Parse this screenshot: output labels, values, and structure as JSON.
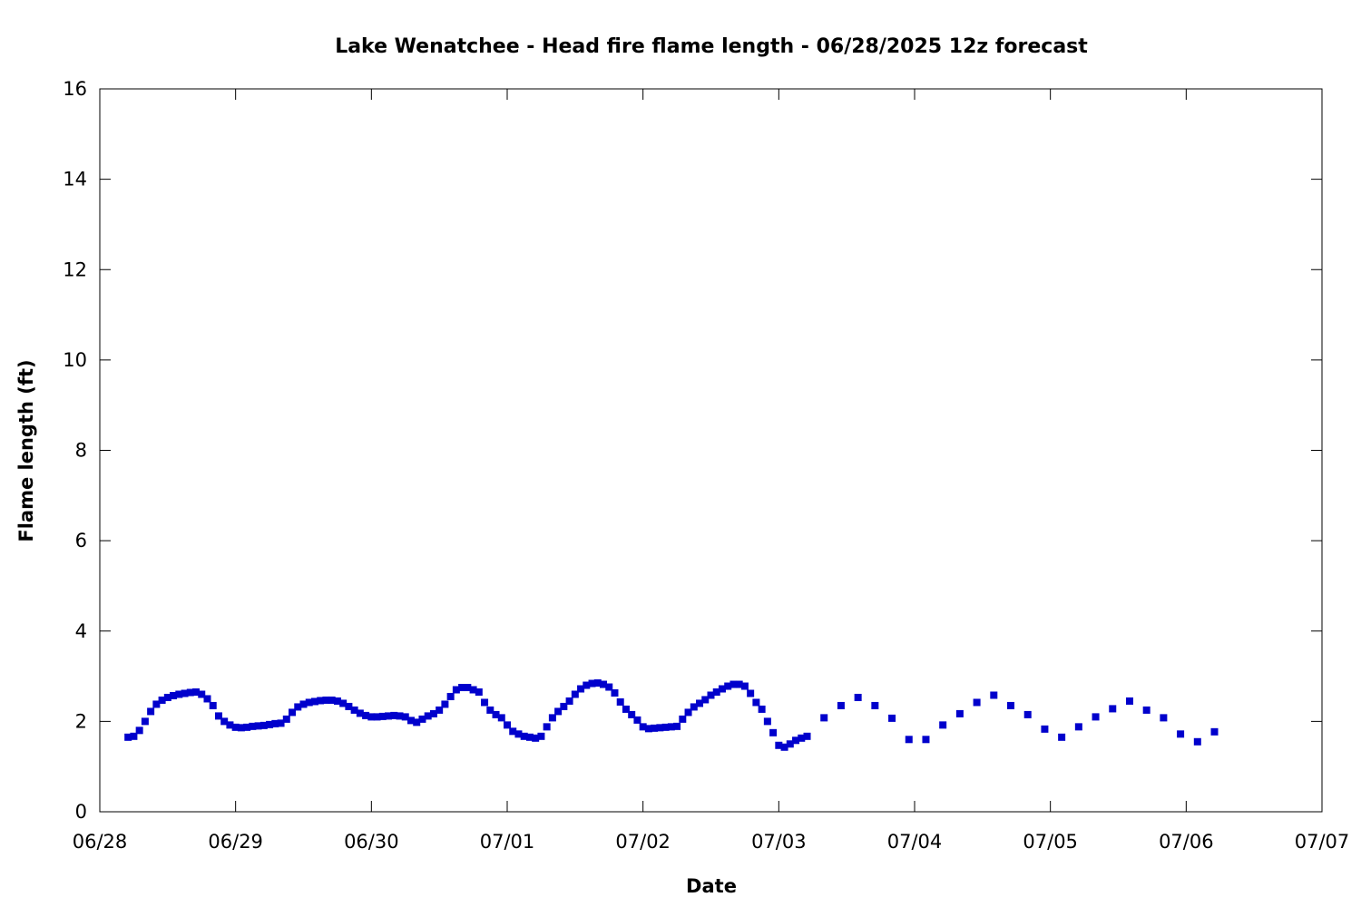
{
  "chart_data": {
    "type": "scatter",
    "title": "Lake Wenatchee - Head fire flame length - 06/28/2025 12z forecast",
    "xlabel": "Date",
    "ylabel": "Flame length (ft)",
    "x_unit": "days",
    "x_ticks": [
      "06/28",
      "06/29",
      "06/30",
      "07/01",
      "07/02",
      "07/03",
      "07/04",
      "07/05",
      "07/06",
      "07/07"
    ],
    "y_ticks": [
      "0",
      "2",
      "4",
      "6",
      "8",
      "10",
      "12",
      "14",
      "16"
    ],
    "ylim": [
      0,
      16
    ],
    "grid": false,
    "legend": "none",
    "marker": "square",
    "color": "#0000cc",
    "series": [
      {
        "x": [
          "06/28 05:00",
          "06/28 06:00",
          "06/28 07:00",
          "06/28 08:00",
          "06/28 09:00",
          "06/28 10:00",
          "06/28 11:00",
          "06/28 12:00",
          "06/28 13:00",
          "06/28 14:00",
          "06/28 15:00",
          "06/28 16:00",
          "06/28 17:00",
          "06/28 18:00",
          "06/28 19:00",
          "06/28 20:00",
          "06/28 21:00",
          "06/28 22:00",
          "06/28 23:00",
          "06/29 00:00",
          "06/29 01:00",
          "06/29 02:00",
          "06/29 03:00",
          "06/29 04:00",
          "06/29 05:00",
          "06/29 06:00",
          "06/29 07:00",
          "06/29 08:00",
          "06/29 09:00",
          "06/29 10:00",
          "06/29 11:00",
          "06/29 12:00",
          "06/29 13:00",
          "06/29 14:00",
          "06/29 15:00",
          "06/29 16:00",
          "06/29 17:00",
          "06/29 18:00",
          "06/29 19:00",
          "06/29 20:00",
          "06/29 21:00",
          "06/29 22:00",
          "06/29 23:00",
          "06/30 00:00",
          "06/30 01:00",
          "06/30 02:00",
          "06/30 03:00",
          "06/30 04:00",
          "06/30 05:00",
          "06/30 06:00",
          "06/30 07:00",
          "06/30 08:00",
          "06/30 09:00",
          "06/30 10:00",
          "06/30 11:00",
          "06/30 12:00",
          "06/30 13:00",
          "06/30 14:00",
          "06/30 15:00",
          "06/30 16:00",
          "06/30 17:00",
          "06/30 18:00",
          "06/30 19:00",
          "06/30 20:00",
          "06/30 21:00",
          "06/30 22:00",
          "06/30 23:00",
          "07/01 00:00",
          "07/01 01:00",
          "07/01 02:00",
          "07/01 03:00",
          "07/01 04:00",
          "07/01 05:00",
          "07/01 06:00",
          "07/01 07:00",
          "07/01 08:00",
          "07/01 09:00",
          "07/01 10:00",
          "07/01 11:00",
          "07/01 12:00",
          "07/01 13:00",
          "07/01 14:00",
          "07/01 15:00",
          "07/01 16:00",
          "07/01 17:00",
          "07/01 18:00",
          "07/01 19:00",
          "07/01 20:00",
          "07/01 21:00",
          "07/01 22:00",
          "07/01 23:00",
          "07/02 00:00",
          "07/02 01:00",
          "07/02 02:00",
          "07/02 03:00",
          "07/02 04:00",
          "07/02 05:00",
          "07/02 06:00",
          "07/02 07:00",
          "07/02 08:00",
          "07/02 09:00",
          "07/02 10:00",
          "07/02 11:00",
          "07/02 12:00",
          "07/02 13:00",
          "07/02 14:00",
          "07/02 15:00",
          "07/02 16:00",
          "07/02 17:00",
          "07/02 18:00",
          "07/02 19:00",
          "07/02 20:00",
          "07/02 21:00",
          "07/02 22:00",
          "07/02 23:00",
          "07/03 00:00",
          "07/03 01:00",
          "07/03 02:00",
          "07/03 03:00",
          "07/03 04:00",
          "07/03 05:00",
          "07/03 08:00",
          "07/03 11:00",
          "07/03 14:00",
          "07/03 17:00",
          "07/03 20:00",
          "07/03 23:00",
          "07/04 02:00",
          "07/04 05:00",
          "07/04 08:00",
          "07/04 11:00",
          "07/04 14:00",
          "07/04 17:00",
          "07/04 20:00",
          "07/04 23:00",
          "07/05 02:00",
          "07/05 05:00",
          "07/05 08:00",
          "07/05 11:00",
          "07/05 14:00",
          "07/05 17:00",
          "07/05 20:00",
          "07/05 23:00",
          "07/06 02:00",
          "07/06 05:00"
        ],
        "y": [
          1.65,
          1.67,
          1.8,
          2.0,
          2.22,
          2.38,
          2.47,
          2.53,
          2.57,
          2.6,
          2.62,
          2.64,
          2.65,
          2.6,
          2.5,
          2.35,
          2.12,
          2.0,
          1.92,
          1.87,
          1.86,
          1.87,
          1.89,
          1.9,
          1.91,
          1.93,
          1.95,
          1.96,
          2.05,
          2.2,
          2.32,
          2.38,
          2.42,
          2.44,
          2.46,
          2.47,
          2.47,
          2.45,
          2.4,
          2.33,
          2.25,
          2.18,
          2.13,
          2.1,
          2.1,
          2.11,
          2.12,
          2.13,
          2.12,
          2.1,
          2.02,
          1.98,
          2.05,
          2.12,
          2.17,
          2.25,
          2.38,
          2.55,
          2.7,
          2.75,
          2.75,
          2.7,
          2.65,
          2.42,
          2.25,
          2.15,
          2.08,
          1.92,
          1.78,
          1.72,
          1.67,
          1.65,
          1.63,
          1.67,
          1.88,
          2.08,
          2.22,
          2.33,
          2.45,
          2.6,
          2.72,
          2.8,
          2.84,
          2.85,
          2.82,
          2.76,
          2.63,
          2.43,
          2.27,
          2.15,
          2.03,
          1.88,
          1.84,
          1.85,
          1.86,
          1.87,
          1.88,
          1.89,
          2.05,
          2.2,
          2.32,
          2.4,
          2.48,
          2.58,
          2.65,
          2.72,
          2.78,
          2.82,
          2.82,
          2.78,
          2.62,
          2.42,
          2.27,
          2.0,
          1.75,
          1.47,
          1.43,
          1.5,
          1.58,
          1.63,
          1.67,
          2.08,
          2.35,
          2.53,
          2.35,
          2.07,
          1.6,
          1.6,
          1.92,
          2.17,
          2.42,
          2.58,
          2.35,
          2.15,
          1.83,
          1.65,
          1.88,
          2.1,
          2.28,
          2.45,
          2.25,
          2.08,
          1.72,
          1.55,
          1.77
        ]
      }
    ]
  }
}
